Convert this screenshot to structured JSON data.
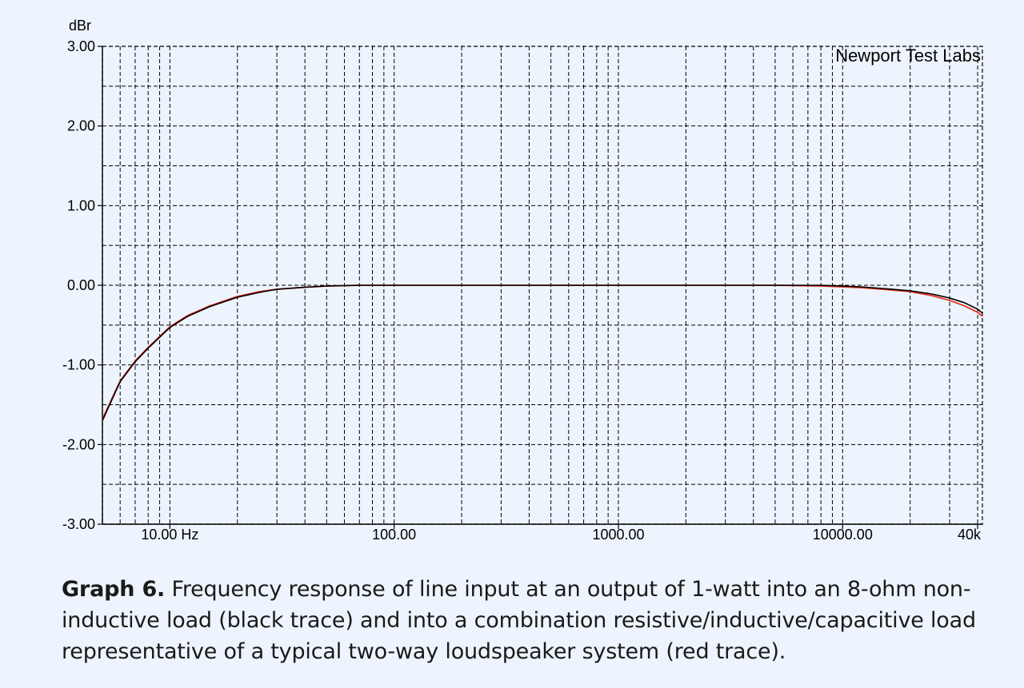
{
  "chart_data": {
    "type": "line",
    "x_scale": "log",
    "xlim": [
      5,
      42000
    ],
    "ylim": [
      -3.0,
      3.0
    ],
    "y_unit_label": "dBr",
    "y_ticks": [
      {
        "value": 3.0,
        "label": "3.00"
      },
      {
        "value": 2.0,
        "label": "2.00"
      },
      {
        "value": 1.0,
        "label": "1.00"
      },
      {
        "value": 0.0,
        "label": "0.00"
      },
      {
        "value": -1.0,
        "label": "-1.00"
      },
      {
        "value": -2.0,
        "label": "-2.00"
      },
      {
        "value": -3.0,
        "label": "-3.00"
      }
    ],
    "x_ticks": [
      {
        "value": 10,
        "label": "10.00 Hz"
      },
      {
        "value": 100,
        "label": "100.00"
      },
      {
        "value": 1000,
        "label": "1000.00"
      },
      {
        "value": 10000,
        "label": "10000.00"
      },
      {
        "value": 40000,
        "label": "40k"
      }
    ],
    "grid": true,
    "annotation": "Newport Test Labs",
    "series": [
      {
        "color": "#e8321e",
        "x": [
          5,
          6,
          7,
          8,
          10,
          12,
          15,
          20,
          25,
          30,
          40,
          50,
          70,
          100,
          1000,
          5000,
          8000,
          10000,
          12000,
          15000,
          20000,
          25000,
          30000,
          35000,
          40000,
          42000
        ],
        "y": [
          -1.68,
          -1.2,
          -0.95,
          -0.78,
          -0.52,
          -0.38,
          -0.26,
          -0.14,
          -0.08,
          -0.05,
          -0.025,
          -0.01,
          0.0,
          0.0,
          0.0,
          0.0,
          -0.01,
          -0.02,
          -0.03,
          -0.05,
          -0.08,
          -0.13,
          -0.19,
          -0.26,
          -0.34,
          -0.39
        ]
      },
      {
        "color": "#000000",
        "x": [
          5,
          6,
          7,
          8,
          10,
          12,
          15,
          20,
          25,
          30,
          40,
          50,
          70,
          100,
          1000,
          5000,
          8000,
          10000,
          12000,
          15000,
          20000,
          25000,
          30000,
          35000,
          40000,
          42000
        ],
        "y": [
          -1.7,
          -1.21,
          -0.96,
          -0.79,
          -0.53,
          -0.39,
          -0.27,
          -0.15,
          -0.09,
          -0.05,
          -0.025,
          -0.01,
          0.0,
          0.0,
          0.0,
          0.0,
          0.0,
          -0.01,
          -0.02,
          -0.04,
          -0.07,
          -0.11,
          -0.16,
          -0.22,
          -0.3,
          -0.35
        ]
      }
    ]
  },
  "caption": {
    "label": "Graph 6.",
    "text": " Frequency response of line input at an output of 1-watt into an 8-ohm non-inductive load (black trace) and into a combination resistive/inductive/capacitive load representative of a typical two-way loudspeaker system (red trace)."
  }
}
